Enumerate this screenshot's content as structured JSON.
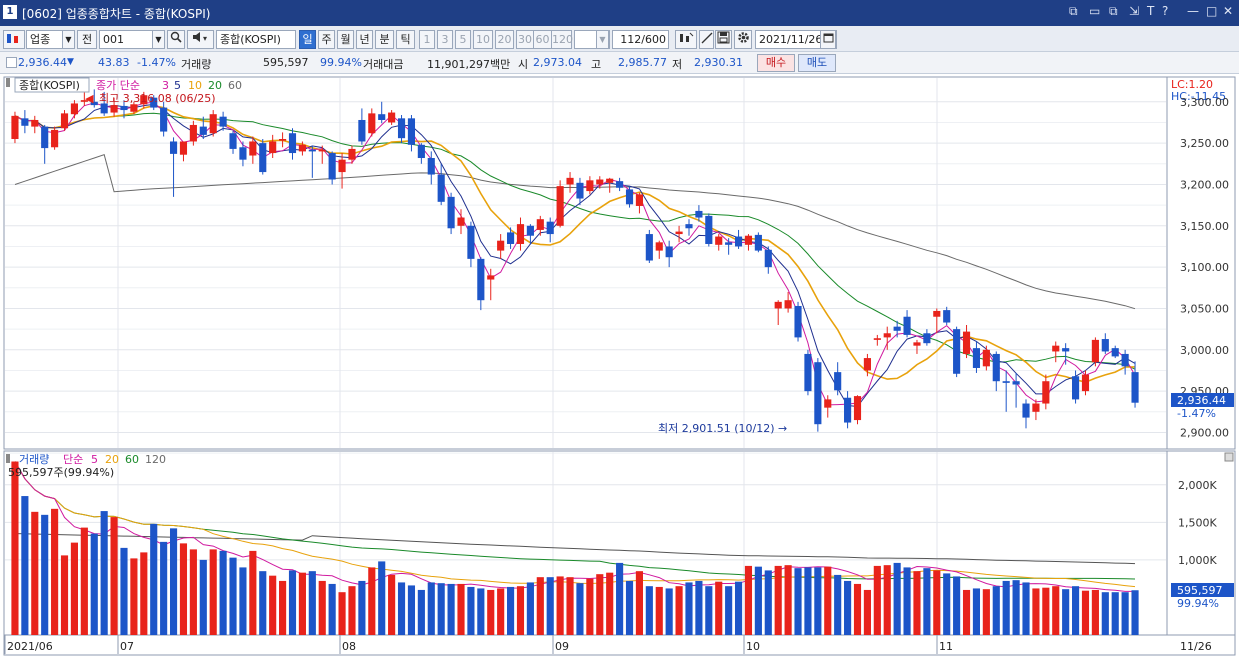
{
  "window": {
    "number": "1",
    "title": "[0602] 업종종합차트 - 종합(KOSPI)",
    "controls": [
      "⧉",
      "▭",
      "⧉",
      "⇲",
      "T",
      "?",
      "—",
      "□",
      "✕"
    ]
  },
  "toolbar": {
    "market": "업종",
    "market_all": "전",
    "code": "001",
    "index_name": "종합(KOSPI)",
    "periods": [
      "일",
      "주",
      "월",
      "년",
      "분",
      "틱"
    ],
    "selected_period": "일",
    "intervals": [
      "1",
      "3",
      "5",
      "10",
      "20",
      "30",
      "60",
      "120"
    ],
    "count": "112",
    "count_total": "/600",
    "date": "2021/11/26"
  },
  "quote": {
    "price": "2,936.44",
    "arrow": "▼",
    "change": "43.83",
    "change_pct": "-1.47%",
    "volume_label": "거래량",
    "volume": "595,597",
    "volume_pct": "99.94%",
    "amount_label": "거래대금",
    "amount": "11,901,297백만",
    "open_label": "시",
    "open": "2,973.04",
    "high_label": "고",
    "high": "2,985.77",
    "low_label": "저",
    "low": "2,930.31",
    "buy": "매수",
    "sell": "매도"
  },
  "colors": {
    "up": "#e8231b",
    "down": "#1d55c8",
    "ma3": "#d01aa0",
    "ma5": "#1f2f8f",
    "ma10": "#e8a20c",
    "ma20": "#1a8a2a",
    "ma60": "#6a6a6a",
    "ma120": "#555555"
  },
  "price_panel": {
    "name": "종합(KOSPI)",
    "legend": [
      "종가 단순",
      "3",
      "5",
      "10",
      "20",
      "60"
    ],
    "high_note": "최고 3,316.08 (06/25)",
    "low_note": "최저 2,901.51 (10/12)",
    "lc": "LC:1.20",
    "hc": "HC:-11.45",
    "last_price": "2,936.44",
    "last_pct": "-1.47%",
    "yticks": [
      "3,300.00",
      "3,250.00",
      "3,200.00",
      "3,150.00",
      "3,100.00",
      "3,050.00",
      "3,000.00",
      "2,950.00",
      "2,900.00"
    ]
  },
  "volume_panel": {
    "legend": [
      "거래량",
      "단순",
      "5",
      "20",
      "60",
      "120"
    ],
    "current": "595,597주(99.94%)",
    "last_value": "595,597",
    "last_pct": "99.94%",
    "yticks": [
      "2,000K",
      "1,500K",
      "1,000K"
    ]
  },
  "xaxis": {
    "labels": [
      "2021/06",
      "07",
      "08",
      "09",
      "10",
      "11"
    ],
    "right_label": "11/26"
  },
  "chart_data": {
    "type": "candlestick",
    "title": "종합(KOSPI)",
    "ylim": [
      2880,
      3330
    ],
    "candles": [
      {
        "o": 3255,
        "h": 3288,
        "l": 3250,
        "c": 3283
      },
      {
        "o": 3280,
        "h": 3290,
        "l": 3262,
        "c": 3271
      },
      {
        "o": 3270,
        "h": 3283,
        "l": 3262,
        "c": 3278
      },
      {
        "o": 3270,
        "h": 3272,
        "l": 3225,
        "c": 3244
      },
      {
        "o": 3245,
        "h": 3270,
        "l": 3242,
        "c": 3266
      },
      {
        "o": 3268,
        "h": 3290,
        "l": 3265,
        "c": 3286
      },
      {
        "o": 3285,
        "h": 3302,
        "l": 3280,
        "c": 3298
      },
      {
        "o": 3300,
        "h": 3316,
        "l": 3295,
        "c": 3302
      },
      {
        "o": 3300,
        "h": 3315,
        "l": 3293,
        "c": 3296
      },
      {
        "o": 3298,
        "h": 3312,
        "l": 3283,
        "c": 3286
      },
      {
        "o": 3287,
        "h": 3305,
        "l": 3282,
        "c": 3296
      },
      {
        "o": 3295,
        "h": 3302,
        "l": 3280,
        "c": 3290
      },
      {
        "o": 3288,
        "h": 3300,
        "l": 3285,
        "c": 3297
      },
      {
        "o": 3297,
        "h": 3312,
        "l": 3292,
        "c": 3308
      },
      {
        "o": 3305,
        "h": 3308,
        "l": 3290,
        "c": 3293
      },
      {
        "o": 3293,
        "h": 3300,
        "l": 3258,
        "c": 3264
      },
      {
        "o": 3252,
        "h": 3257,
        "l": 3185,
        "c": 3237
      },
      {
        "o": 3236,
        "h": 3250,
        "l": 3228,
        "c": 3252
      },
      {
        "o": 3252,
        "h": 3277,
        "l": 3247,
        "c": 3272
      },
      {
        "o": 3270,
        "h": 3282,
        "l": 3255,
        "c": 3260
      },
      {
        "o": 3262,
        "h": 3290,
        "l": 3258,
        "c": 3285
      },
      {
        "o": 3282,
        "h": 3288,
        "l": 3265,
        "c": 3270
      },
      {
        "o": 3262,
        "h": 3265,
        "l": 3237,
        "c": 3243
      },
      {
        "o": 3245,
        "h": 3252,
        "l": 3222,
        "c": 3230
      },
      {
        "o": 3235,
        "h": 3258,
        "l": 3225,
        "c": 3252
      },
      {
        "o": 3250,
        "h": 3255,
        "l": 3212,
        "c": 3215
      },
      {
        "o": 3238,
        "h": 3260,
        "l": 3232,
        "c": 3252
      },
      {
        "o": 3253,
        "h": 3263,
        "l": 3245,
        "c": 3255
      },
      {
        "o": 3262,
        "h": 3268,
        "l": 3230,
        "c": 3238
      },
      {
        "o": 3240,
        "h": 3252,
        "l": 3235,
        "c": 3248
      },
      {
        "o": 3242,
        "h": 3247,
        "l": 3208,
        "c": 3240
      },
      {
        "o": 3240,
        "h": 3247,
        "l": 3225,
        "c": 3242
      },
      {
        "o": 3238,
        "h": 3240,
        "l": 3200,
        "c": 3206
      },
      {
        "o": 3215,
        "h": 3238,
        "l": 3195,
        "c": 3230
      },
      {
        "o": 3230,
        "h": 3247,
        "l": 3225,
        "c": 3243
      },
      {
        "o": 3278,
        "h": 3292,
        "l": 3248,
        "c": 3252
      },
      {
        "o": 3262,
        "h": 3292,
        "l": 3258,
        "c": 3286
      },
      {
        "o": 3285,
        "h": 3300,
        "l": 3274,
        "c": 3278
      },
      {
        "o": 3275,
        "h": 3290,
        "l": 3272,
        "c": 3287
      },
      {
        "o": 3280,
        "h": 3284,
        "l": 3250,
        "c": 3256
      },
      {
        "o": 3280,
        "h": 3284,
        "l": 3240,
        "c": 3248
      },
      {
        "o": 3248,
        "h": 3250,
        "l": 3225,
        "c": 3232
      },
      {
        "o": 3232,
        "h": 3240,
        "l": 3200,
        "c": 3212
      },
      {
        "o": 3212,
        "h": 3225,
        "l": 3175,
        "c": 3179
      },
      {
        "o": 3185,
        "h": 3190,
        "l": 3140,
        "c": 3147
      },
      {
        "o": 3150,
        "h": 3170,
        "l": 3140,
        "c": 3160
      },
      {
        "o": 3150,
        "h": 3155,
        "l": 3100,
        "c": 3110
      },
      {
        "o": 3110,
        "h": 3112,
        "l": 3048,
        "c": 3060
      },
      {
        "o": 3085,
        "h": 3098,
        "l": 3060,
        "c": 3090
      },
      {
        "o": 3120,
        "h": 3140,
        "l": 3110,
        "c": 3132
      },
      {
        "o": 3142,
        "h": 3148,
        "l": 3122,
        "c": 3128
      },
      {
        "o": 3128,
        "h": 3160,
        "l": 3120,
        "c": 3152
      },
      {
        "o": 3150,
        "h": 3152,
        "l": 3128,
        "c": 3138
      },
      {
        "o": 3145,
        "h": 3162,
        "l": 3138,
        "c": 3158
      },
      {
        "o": 3155,
        "h": 3160,
        "l": 3130,
        "c": 3140
      },
      {
        "o": 3150,
        "h": 3205,
        "l": 3148,
        "c": 3198
      },
      {
        "o": 3200,
        "h": 3215,
        "l": 3190,
        "c": 3208
      },
      {
        "o": 3202,
        "h": 3208,
        "l": 3175,
        "c": 3183
      },
      {
        "o": 3192,
        "h": 3210,
        "l": 3188,
        "c": 3205
      },
      {
        "o": 3200,
        "h": 3210,
        "l": 3195,
        "c": 3206
      },
      {
        "o": 3202,
        "h": 3208,
        "l": 3190,
        "c": 3207
      },
      {
        "o": 3204,
        "h": 3208,
        "l": 3192,
        "c": 3196
      },
      {
        "o": 3194,
        "h": 3198,
        "l": 3172,
        "c": 3176
      },
      {
        "o": 3174,
        "h": 3190,
        "l": 3165,
        "c": 3188
      },
      {
        "o": 3140,
        "h": 3145,
        "l": 3105,
        "c": 3108
      },
      {
        "o": 3120,
        "h": 3132,
        "l": 3110,
        "c": 3130
      },
      {
        "o": 3125,
        "h": 3132,
        "l": 3100,
        "c": 3112
      },
      {
        "o": 3140,
        "h": 3150,
        "l": 3130,
        "c": 3143
      },
      {
        "o": 3152,
        "h": 3158,
        "l": 3138,
        "c": 3147
      },
      {
        "o": 3168,
        "h": 3175,
        "l": 3155,
        "c": 3160
      },
      {
        "o": 3162,
        "h": 3165,
        "l": 3125,
        "c": 3128
      },
      {
        "o": 3127,
        "h": 3140,
        "l": 3120,
        "c": 3137
      },
      {
        "o": 3130,
        "h": 3135,
        "l": 3115,
        "c": 3127
      },
      {
        "o": 3137,
        "h": 3145,
        "l": 3122,
        "c": 3125
      },
      {
        "o": 3127,
        "h": 3140,
        "l": 3120,
        "c": 3138
      },
      {
        "o": 3139,
        "h": 3142,
        "l": 3118,
        "c": 3120
      },
      {
        "o": 3121,
        "h": 3125,
        "l": 3092,
        "c": 3100
      },
      {
        "o": 3050,
        "h": 3060,
        "l": 3030,
        "c": 3058
      },
      {
        "o": 3050,
        "h": 3070,
        "l": 3045,
        "c": 3060
      },
      {
        "o": 3053,
        "h": 3058,
        "l": 3010,
        "c": 3015
      },
      {
        "o": 2995,
        "h": 3000,
        "l": 2945,
        "c": 2950
      },
      {
        "o": 2985,
        "h": 2990,
        "l": 2901,
        "c": 2910
      },
      {
        "o": 2930,
        "h": 2945,
        "l": 2918,
        "c": 2940
      },
      {
        "o": 2973,
        "h": 2985,
        "l": 2945,
        "c": 2951
      },
      {
        "o": 2942,
        "h": 2950,
        "l": 2905,
        "c": 2912
      },
      {
        "o": 2915,
        "h": 2945,
        "l": 2910,
        "c": 2944
      },
      {
        "o": 2975,
        "h": 2995,
        "l": 2968,
        "c": 2990
      },
      {
        "o": 3012,
        "h": 3018,
        "l": 3005,
        "c": 3014
      },
      {
        "o": 3015,
        "h": 3028,
        "l": 3000,
        "c": 3020
      },
      {
        "o": 3028,
        "h": 3035,
        "l": 3015,
        "c": 3023
      },
      {
        "o": 3040,
        "h": 3048,
        "l": 3015,
        "c": 3018
      },
      {
        "o": 3005,
        "h": 3012,
        "l": 2995,
        "c": 3009
      },
      {
        "o": 3020,
        "h": 3025,
        "l": 3005,
        "c": 3008
      },
      {
        "o": 3040,
        "h": 3050,
        "l": 3020,
        "c": 3047
      },
      {
        "o": 3048,
        "h": 3052,
        "l": 3030,
        "c": 3033
      },
      {
        "o": 3025,
        "h": 3028,
        "l": 2967,
        "c": 2971
      },
      {
        "o": 2995,
        "h": 3030,
        "l": 2990,
        "c": 3022
      },
      {
        "o": 3002,
        "h": 3010,
        "l": 2972,
        "c": 2978
      },
      {
        "o": 2980,
        "h": 3005,
        "l": 2975,
        "c": 3000
      },
      {
        "o": 2995,
        "h": 2998,
        "l": 2950,
        "c": 2962
      },
      {
        "o": 2962,
        "h": 2975,
        "l": 2925,
        "c": 2960
      },
      {
        "o": 2962,
        "h": 2972,
        "l": 2930,
        "c": 2958
      },
      {
        "o": 2935,
        "h": 2940,
        "l": 2905,
        "c": 2918
      },
      {
        "o": 2925,
        "h": 2940,
        "l": 2915,
        "c": 2935
      },
      {
        "o": 2935,
        "h": 2970,
        "l": 2928,
        "c": 2962
      },
      {
        "o": 2998,
        "h": 3010,
        "l": 2985,
        "c": 3005
      },
      {
        "o": 3002,
        "h": 3008,
        "l": 2982,
        "c": 2998
      },
      {
        "o": 2968,
        "h": 2975,
        "l": 2935,
        "c": 2940
      },
      {
        "o": 2950,
        "h": 2975,
        "l": 2945,
        "c": 2970
      },
      {
        "o": 2985,
        "h": 3015,
        "l": 2980,
        "c": 3012
      },
      {
        "o": 3013,
        "h": 3020,
        "l": 2995,
        "c": 2998
      },
      {
        "o": 3002,
        "h": 3005,
        "l": 2990,
        "c": 2992
      },
      {
        "o": 2995,
        "h": 3000,
        "l": 2970,
        "c": 2980
      },
      {
        "o": 2973,
        "h": 2986,
        "l": 2930,
        "c": 2936
      }
    ],
    "volumes": [
      2310,
      1850,
      1640,
      1600,
      1680,
      1060,
      1230,
      1430,
      1350,
      1650,
      1570,
      1160,
      1020,
      1100,
      1480,
      1240,
      1420,
      1220,
      1140,
      1000,
      1140,
      1120,
      1030,
      900,
      1120,
      850,
      790,
      720,
      860,
      830,
      850,
      720,
      680,
      570,
      650,
      720,
      900,
      980,
      800,
      700,
      660,
      600,
      700,
      690,
      680,
      680,
      640,
      620,
      600,
      620,
      640,
      650,
      700,
      770,
      770,
      780,
      770,
      690,
      750,
      810,
      830,
      960,
      720,
      850,
      650,
      640,
      620,
      650,
      700,
      720,
      650,
      710,
      650,
      710,
      920,
      910,
      860,
      920,
      930,
      890,
      900,
      900,
      910,
      800,
      720,
      680,
      600,
      920,
      930,
      960,
      900,
      850,
      890,
      860,
      820,
      780,
      600,
      620,
      610,
      650,
      720,
      730,
      700,
      620,
      630,
      650,
      610,
      650,
      590,
      600,
      570,
      570,
      570,
      596
    ],
    "ma5_volume_scale": "K"
  }
}
